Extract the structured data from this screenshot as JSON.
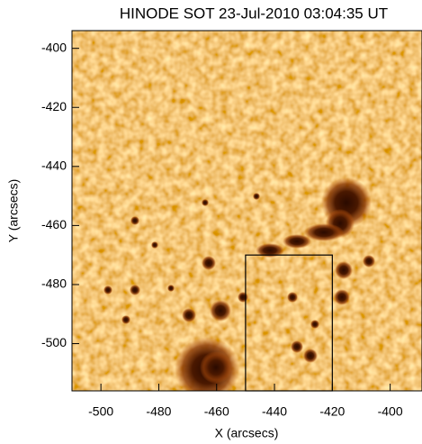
{
  "chart_data": {
    "type": "image",
    "title": "HINODE SOT 23-Jul-2010 03:04:35 UT",
    "xlabel": "X (arcsecs)",
    "ylabel": "Y (arcsecs)",
    "xlim": [
      -510,
      -389
    ],
    "ylim": [
      -516,
      -394
    ],
    "xticks": [
      -500,
      -480,
      -460,
      -440,
      -420,
      -400
    ],
    "yticks": [
      -400,
      -420,
      -440,
      -460,
      -480,
      -500
    ],
    "box": {
      "x": [
        -450,
        -420
      ],
      "y": [
        -516,
        -470
      ]
    }
  }
}
